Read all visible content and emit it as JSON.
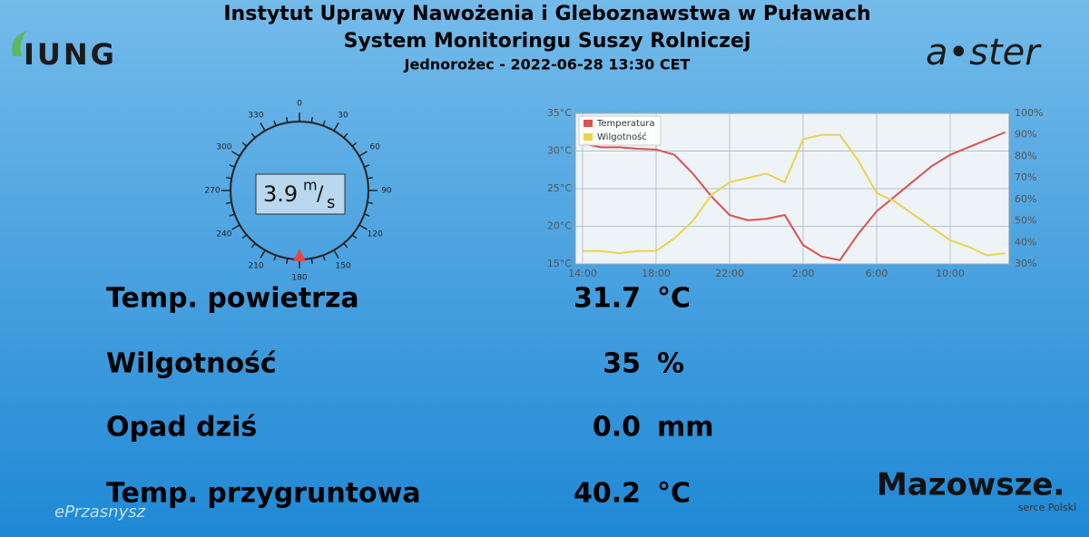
{
  "header": {
    "title": "Instytut Uprawy Nawożenia i Gleboznawstwa w Puławach",
    "subtitle": "System Monitoringu Suszy Rolniczej",
    "station": "Jednorożec - 2022-06-28 13:30 CET"
  },
  "logos": {
    "left": "IUNG",
    "right": "a•ster",
    "bottom_right": "Mazowsze.",
    "bottom_right_sub": "serce Polski",
    "bottom_left": "ePrzasnysz"
  },
  "compass": {
    "ticks": [
      "0",
      "30",
      "60",
      "90",
      "120",
      "150",
      "180",
      "210",
      "240",
      "270",
      "300",
      "330"
    ],
    "speed": "3.9",
    "unit_top": "m",
    "unit_bottom": "s",
    "direction": 180
  },
  "readings": [
    {
      "label": "Temp. powietrza",
      "value": "31.7",
      "unit": "°C"
    },
    {
      "label": "Wilgotność",
      "value": "35",
      "unit": "%"
    },
    {
      "label": "Opad dziś",
      "value": "0.0",
      "unit": "mm"
    },
    {
      "label": "Temp. przygruntowa",
      "value": "40.2",
      "unit": "°C"
    }
  ],
  "chart_data": {
    "type": "line",
    "categories": [
      "14:00",
      null,
      null,
      null,
      "18:00",
      null,
      null,
      null,
      "22:00",
      null,
      null,
      null,
      "2:00",
      null,
      null,
      null,
      "6:00",
      null,
      null,
      null,
      "10:00",
      null,
      null,
      null
    ],
    "series": [
      {
        "name": "Temperatura",
        "color": "#d9534f",
        "values": [
          31,
          30.5,
          30.5,
          30.3,
          30.2,
          29.5,
          27,
          24,
          21.5,
          20.8,
          21,
          21.5,
          17.5,
          16,
          15.5,
          19,
          22,
          24,
          26,
          28,
          29.5,
          30.5,
          31.5,
          32.5
        ]
      },
      {
        "name": "Wilgotność",
        "color": "#e8d44d",
        "axis": "y2",
        "values": [
          36,
          36,
          35,
          36,
          36,
          42,
          50,
          62,
          68,
          70,
          72,
          68,
          88,
          90,
          90,
          78,
          63,
          59,
          53,
          47,
          41,
          38,
          34,
          35
        ]
      }
    ],
    "ylim": [
      15,
      35
    ],
    "yticks": [
      {
        "value": 15,
        "label": "15°C"
      },
      {
        "value": 20,
        "label": "20°C"
      },
      {
        "value": 25,
        "label": "25°C"
      },
      {
        "value": 30,
        "label": "30°C"
      },
      {
        "value": 35,
        "label": "35°C"
      }
    ],
    "y2lim": [
      30,
      100
    ],
    "y2ticks": [
      {
        "value": 30,
        "label": "30%"
      },
      {
        "value": 40,
        "label": "40%"
      },
      {
        "value": 50,
        "label": "50%"
      },
      {
        "value": 60,
        "label": "60%"
      },
      {
        "value": 70,
        "label": "70%"
      },
      {
        "value": 80,
        "label": "80%"
      },
      {
        "value": 90,
        "label": "90%"
      },
      {
        "value": 100,
        "label": "100%"
      }
    ],
    "grid": true,
    "legend": "upper left"
  }
}
